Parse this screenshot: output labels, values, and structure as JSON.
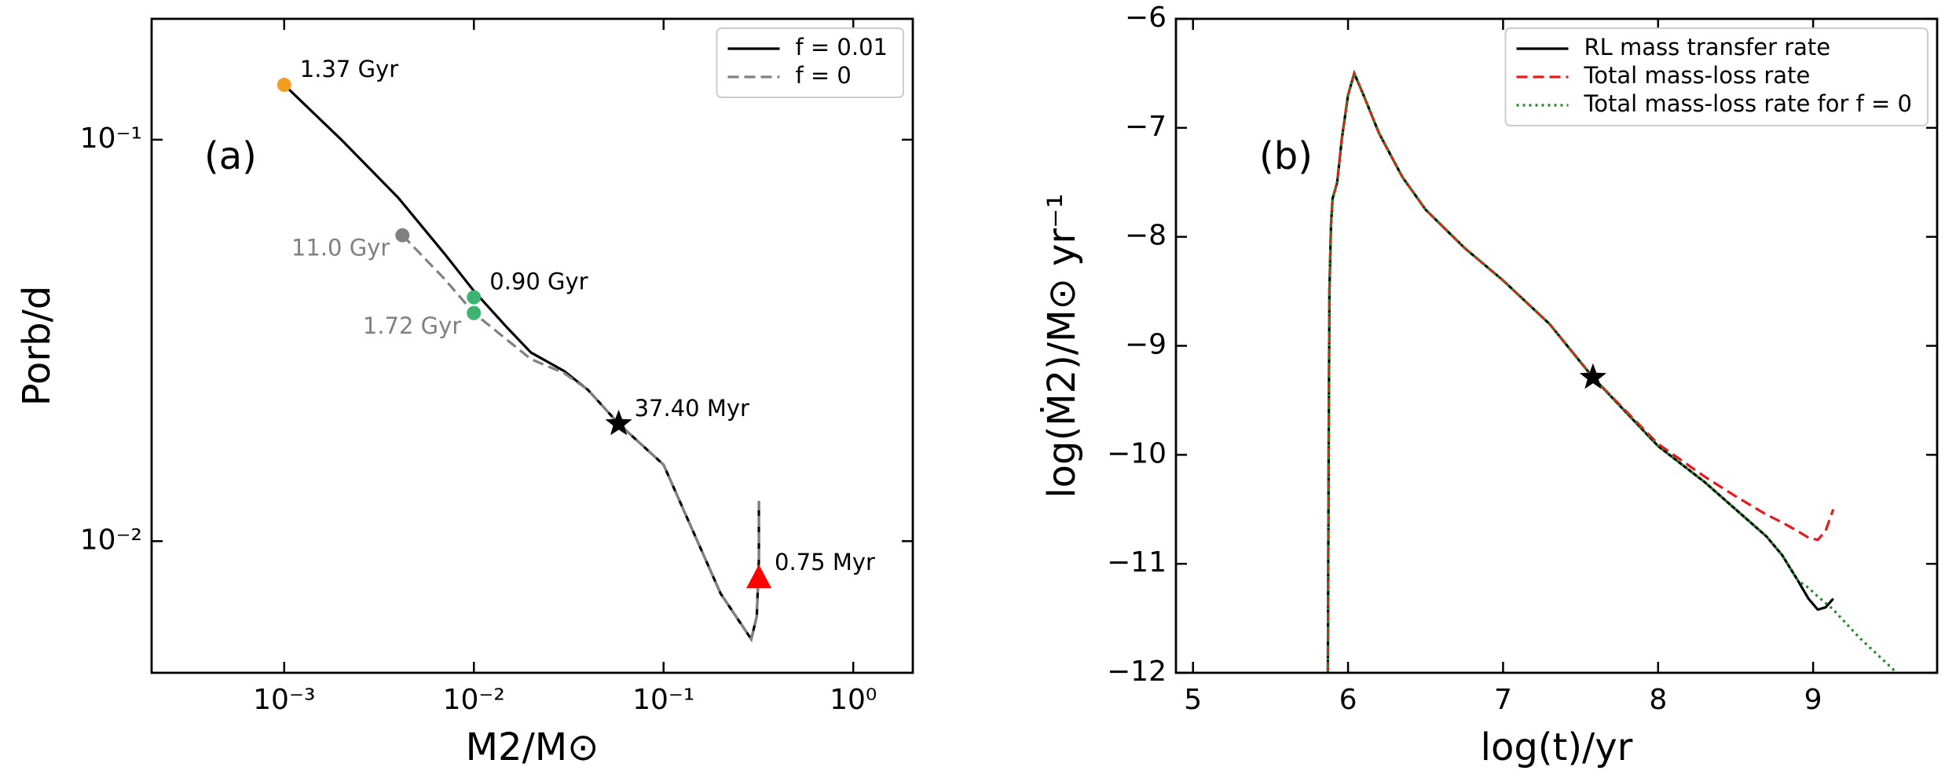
{
  "chart_data": [
    {
      "type": "line",
      "panel_label": "(a)",
      "xlabel": "M2/M⊙",
      "ylabel": "Porb/d",
      "xscale": "log",
      "yscale": "log",
      "xlim": [
        0.0002,
        2.06
      ],
      "ylim": [
        0.0047,
        0.2
      ],
      "xticks": [
        {
          "value": 0.001,
          "label": "10⁻³"
        },
        {
          "value": 0.01,
          "label": "10⁻²"
        },
        {
          "value": 0.1,
          "label": "10⁻¹"
        },
        {
          "value": 1,
          "label": "10⁰"
        }
      ],
      "yticks": [
        {
          "value": 0.1,
          "label": "10⁻¹"
        },
        {
          "value": 0.01,
          "label": "10⁻²"
        }
      ],
      "legend": "upper right",
      "series": [
        {
          "name": "f = 0.01",
          "color": "#000000",
          "linestyle": "solid",
          "x": [
            0.001,
            0.002,
            0.004,
            0.007,
            0.01,
            0.015,
            0.02,
            0.03,
            0.04,
            0.058,
            0.1,
            0.2,
            0.29,
            0.31,
            0.318,
            0.318
          ],
          "values": [
            0.137,
            0.1,
            0.0716,
            0.052,
            0.042,
            0.034,
            0.0295,
            0.0265,
            0.0238,
            0.0196,
            0.0155,
            0.0074,
            0.0057,
            0.0065,
            0.009,
            0.0126
          ]
        },
        {
          "name": "f = 0",
          "color": "#808080",
          "linestyle": "dashed",
          "x": [
            0.0042,
            0.007,
            0.01,
            0.02,
            0.03,
            0.04,
            0.058,
            0.1,
            0.2,
            0.29,
            0.31,
            0.318,
            0.318
          ],
          "values": [
            0.0578,
            0.045,
            0.037,
            0.0284,
            0.0262,
            0.0238,
            0.0196,
            0.0155,
            0.0074,
            0.0057,
            0.0065,
            0.009,
            0.0126
          ]
        }
      ],
      "markers": [
        {
          "x": 0.001,
          "y": 0.137,
          "marker": "circle",
          "color": "#f39c1f",
          "label": "1.37 Gyr",
          "label_color": "#000000"
        },
        {
          "x": 0.0042,
          "y": 0.0578,
          "marker": "circle",
          "color": "#808080",
          "label": "11.0 Gyr",
          "label_color": "#808080"
        },
        {
          "x": 0.01,
          "y": 0.0405,
          "marker": "circle",
          "color": "#3cb371",
          "label": "0.90 Gyr",
          "label_color": "#000000"
        },
        {
          "x": 0.01,
          "y": 0.037,
          "marker": "circle",
          "color": "#3cb371",
          "label": "1.72 Gyr",
          "label_color": "#808080"
        },
        {
          "x": 0.058,
          "y": 0.0196,
          "marker": "star",
          "color": "#000000",
          "label": "37.40 Myr",
          "label_color": "#000000"
        },
        {
          "x": 0.318,
          "y": 0.0081,
          "marker": "triangle",
          "color": "#ff0000",
          "label": "0.75 Myr",
          "label_color": "#000000"
        }
      ]
    },
    {
      "type": "line",
      "panel_label": "(b)",
      "xlabel": "log(t)/yr",
      "ylabel": "log(Ṁ2)/M⊙ yr⁻¹",
      "xscale": "linear",
      "yscale": "linear",
      "xlim": [
        4.89,
        9.8
      ],
      "ylim": [
        -12,
        -6
      ],
      "xticks": [
        5,
        6,
        7,
        8,
        9
      ],
      "yticks": [
        {
          "value": -6,
          "label": "−6"
        },
        {
          "value": -7,
          "label": "−7"
        },
        {
          "value": -8,
          "label": "−8"
        },
        {
          "value": -9,
          "label": "−9"
        },
        {
          "value": -10,
          "label": "−10"
        },
        {
          "value": -11,
          "label": "−11"
        },
        {
          "value": -12,
          "label": "−12"
        }
      ],
      "legend": "upper right",
      "series": [
        {
          "name": "RL mass transfer rate",
          "color": "#000000",
          "linestyle": "solid",
          "x": [
            5.87,
            5.875,
            5.88,
            5.89,
            5.9,
            5.93,
            5.96,
            6.0,
            6.04,
            6.1,
            6.2,
            6.35,
            6.5,
            6.75,
            7.0,
            7.3,
            7.58,
            8.0,
            8.3,
            8.5,
            8.7,
            8.8,
            8.9,
            8.97,
            9.03,
            9.08,
            9.13
          ],
          "values": [
            -12,
            -10,
            -8.5,
            -7.9,
            -7.65,
            -7.5,
            -7.1,
            -6.7,
            -6.5,
            -6.7,
            -7.05,
            -7.45,
            -7.75,
            -8.1,
            -8.4,
            -8.8,
            -9.29,
            -9.92,
            -10.25,
            -10.5,
            -10.75,
            -10.92,
            -11.15,
            -11.32,
            -11.42,
            -11.4,
            -11.32
          ]
        },
        {
          "name": "Total mass-loss rate",
          "color": "#e8191c",
          "linestyle": "dashed",
          "x": [
            5.87,
            5.875,
            5.88,
            5.89,
            5.9,
            5.93,
            5.96,
            6.0,
            6.04,
            6.1,
            6.2,
            6.35,
            6.5,
            6.75,
            7.0,
            7.3,
            7.58,
            8.0,
            8.3,
            8.5,
            8.7,
            8.8,
            8.9,
            8.97,
            9.03,
            9.08,
            9.13
          ],
          "values": [
            -12,
            -10,
            -8.5,
            -7.9,
            -7.65,
            -7.5,
            -7.1,
            -6.7,
            -6.5,
            -6.7,
            -7.05,
            -7.45,
            -7.75,
            -8.1,
            -8.4,
            -8.8,
            -9.29,
            -9.9,
            -10.2,
            -10.38,
            -10.55,
            -10.62,
            -10.7,
            -10.76,
            -10.78,
            -10.7,
            -10.5
          ]
        },
        {
          "name": "Total mass-loss rate for f = 0",
          "color": "#1f8a1f",
          "linestyle": "dotted",
          "x": [
            5.87,
            5.875,
            5.88,
            5.89,
            5.9,
            5.93,
            5.96,
            6.0,
            6.04,
            6.1,
            6.2,
            6.35,
            6.5,
            6.75,
            7.0,
            7.3,
            7.58,
            8.0,
            8.3,
            8.5,
            8.7,
            8.8,
            8.9,
            8.97,
            9.03,
            9.08,
            9.13,
            9.3,
            9.54
          ],
          "values": [
            -12,
            -10,
            -8.5,
            -7.9,
            -7.65,
            -7.5,
            -7.1,
            -6.7,
            -6.5,
            -6.7,
            -7.05,
            -7.45,
            -7.75,
            -8.1,
            -8.4,
            -8.8,
            -9.29,
            -9.92,
            -10.25,
            -10.5,
            -10.75,
            -10.92,
            -11.15,
            -11.22,
            -11.3,
            -11.36,
            -11.42,
            -11.68,
            -12
          ]
        }
      ],
      "markers": [
        {
          "x": 7.58,
          "y": -9.29,
          "marker": "star",
          "color": "#000000"
        }
      ]
    }
  ]
}
